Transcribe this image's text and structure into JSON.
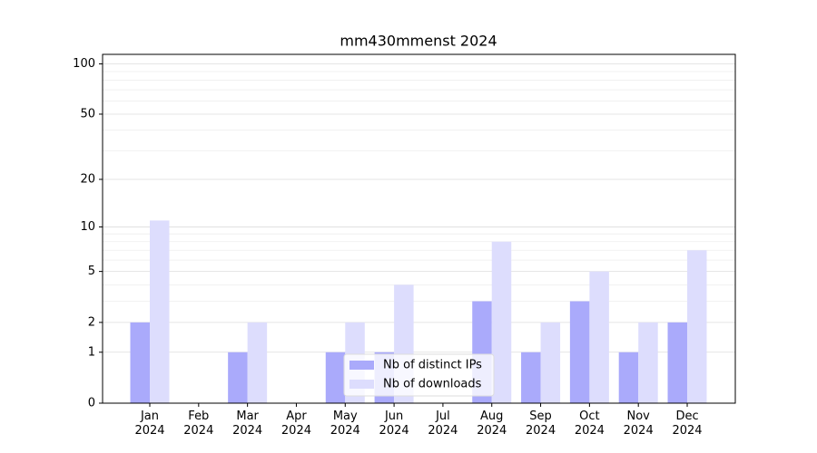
{
  "chart_data": {
    "type": "bar",
    "title": "mm430mmenst 2024",
    "categories": [
      "Jan\n2024",
      "Feb\n2024",
      "Mar\n2024",
      "Apr\n2024",
      "May\n2024",
      "Jun\n2024",
      "Jul\n2024",
      "Aug\n2024",
      "Sep\n2024",
      "Oct\n2024",
      "Nov\n2024",
      "Dec\n2024"
    ],
    "series": [
      {
        "name": "Nb of distinct IPs",
        "color": "#aaaafb",
        "values": [
          2,
          0,
          1,
          0,
          1,
          1,
          0,
          3,
          1,
          3,
          1,
          2
        ]
      },
      {
        "name": "Nb of downloads",
        "color": "#ddddfd",
        "values": [
          11,
          0,
          2,
          0,
          2,
          4,
          0,
          8,
          2,
          5,
          2,
          7
        ]
      }
    ],
    "yscale": "log1p",
    "ylim": [
      0,
      114
    ],
    "yticks": [
      0,
      1,
      2,
      5,
      10,
      20,
      50,
      100
    ],
    "minor_yticks": [
      3,
      4,
      6,
      7,
      8,
      9,
      30,
      40,
      60,
      70,
      80,
      90
    ],
    "grid": true,
    "legend": "lower center"
  }
}
